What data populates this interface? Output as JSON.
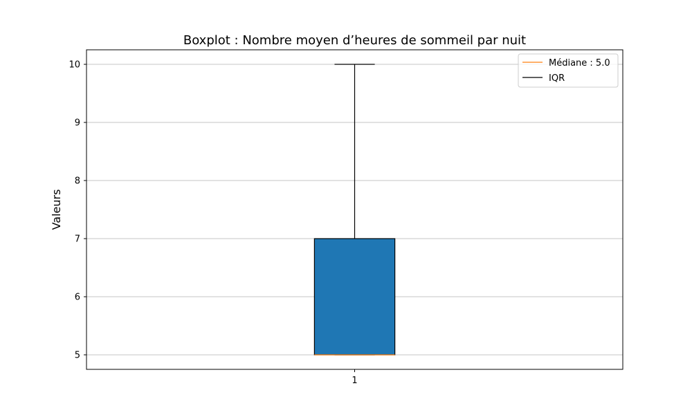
{
  "chart_data": {
    "type": "box",
    "title": "Boxplot : Nombre moyen d’heures de sommeil par nuit",
    "xlabel": "",
    "ylabel": "Valeurs",
    "categories": [
      "1"
    ],
    "ylim": [
      4.75,
      10.25
    ],
    "yticks": [
      5,
      6,
      7,
      8,
      9,
      10
    ],
    "grid": "y",
    "legend_position": "top-right",
    "legend": [
      {
        "label": "Médiane : 5.0",
        "color": "#ff7f0e"
      },
      {
        "label": "IQR",
        "color": "#000000"
      }
    ],
    "boxes": [
      {
        "category": "1",
        "whisker_low": 5,
        "q1": 5,
        "median": 5.0,
        "q3": 7,
        "whisker_high": 10
      }
    ],
    "colors": {
      "box_fill": "#1f77b4",
      "median": "#ff7f0e",
      "grid": "#b0b0b0"
    }
  }
}
